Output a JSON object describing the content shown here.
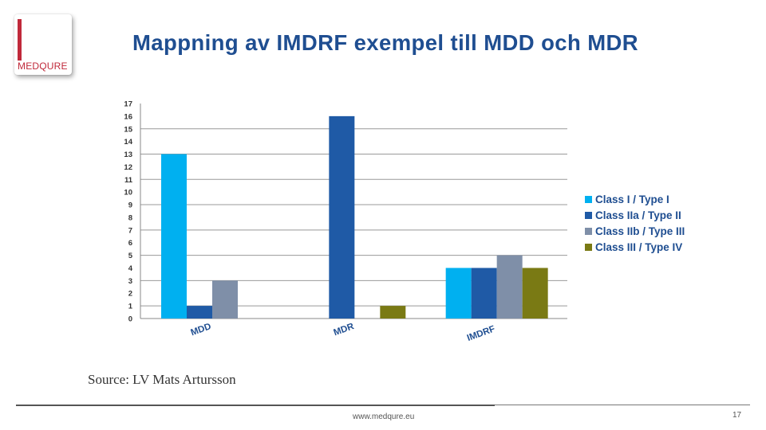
{
  "title": "Mappning av IMDRF exempel till MDD och MDR",
  "logo": {
    "text": "MEDQURE"
  },
  "source": "Source: LV Mats Artursson",
  "footer": {
    "url": "www.medqure.eu",
    "page": "17"
  },
  "chart_data": {
    "type": "bar",
    "title": "",
    "xlabel": "",
    "ylabel": "",
    "ylim": [
      0,
      17
    ],
    "yticks": [
      0,
      1,
      2,
      3,
      4,
      5,
      6,
      7,
      8,
      9,
      10,
      11,
      12,
      13,
      14,
      15,
      16,
      17
    ],
    "categories": [
      "MDD",
      "MDR",
      "IMDRF"
    ],
    "series": [
      {
        "name": "Class I / Type I",
        "color": "#00b0f0",
        "values": [
          13,
          null,
          4
        ]
      },
      {
        "name": "Class IIa / Type  II",
        "color": "#1f5aa6",
        "values": [
          1,
          16,
          4
        ]
      },
      {
        "name": "Class IIb / Type III",
        "color": "#7f8fa8",
        "values": [
          3,
          null,
          5
        ]
      },
      {
        "name": "Class III / Type IV",
        "color": "#7a7a14",
        "values": [
          null,
          1,
          4
        ]
      }
    ],
    "legend_position": "right",
    "grid": true
  }
}
